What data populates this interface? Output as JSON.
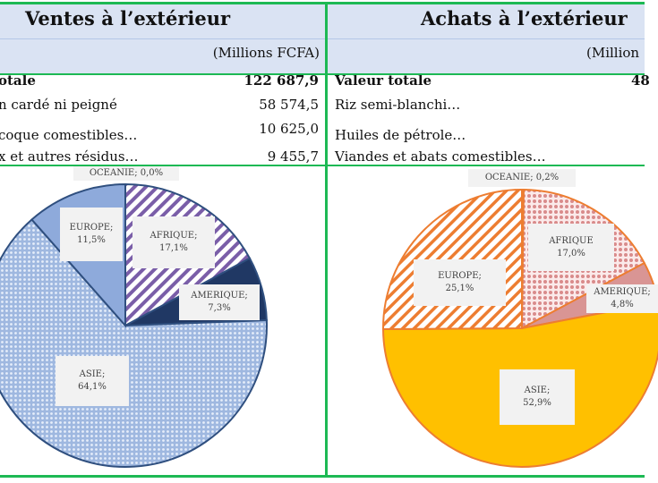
{
  "left": {
    "title": "Ventes à l’extérieur",
    "unit": "(Millions FCFA)",
    "rows": [
      {
        "label": "otale",
        "value": "122 687,9",
        "bold": true
      },
      {
        "label": "n cardé ni peigné",
        "value": "58 574,5"
      },
      {
        "label": "coque comestibles…",
        "value": "10 625,0"
      },
      {
        "label": "x et autres résidus…",
        "value": "9 455,7"
      }
    ]
  },
  "right": {
    "title": "Achats à l’extérieur",
    "unit": "(Million",
    "rows": [
      {
        "label": "Valeur totale",
        "value": "48",
        "bold": true
      },
      {
        "label": "Riz semi-blanchi…",
        "value": ""
      },
      {
        "label": "Huiles de pétrole…",
        "value": ""
      },
      {
        "label": "Viandes et abats comestibles…",
        "value": ""
      }
    ]
  },
  "chart_data": [
    {
      "type": "pie",
      "start": "12 o'clock, clockwise",
      "slices": [
        {
          "name": "OCEANIE",
          "value": 0.0,
          "label": "OCEANIE;  0,0%",
          "color": "#ffffff",
          "pattern": "none"
        },
        {
          "name": "AFRIQUE",
          "value": 17.1,
          "label": "AFRIQUE; 17,1%",
          "color": "#7a5ea8",
          "pattern": "diagonal-hatch"
        },
        {
          "name": "AMERIQUE",
          "value": 7.3,
          "label": "AMERIQUE; 7,3%",
          "color": "#203864",
          "pattern": "solid"
        },
        {
          "name": "ASIE",
          "value": 64.1,
          "label": "ASIE; 64,1%",
          "color": "#9fb8e0",
          "pattern": "dots"
        },
        {
          "name": "EUROPE",
          "value": 11.5,
          "label": "EUROPE; 11,5%",
          "color": "#8eaadb",
          "pattern": "solid"
        }
      ],
      "outline": "#2f4f7f"
    },
    {
      "type": "pie",
      "start": "12 o'clock, clockwise",
      "slices": [
        {
          "name": "OCEANIE",
          "value": 0.2,
          "label": "OCEANIE;  0,2%",
          "color": "#ed7d31",
          "pattern": "solid"
        },
        {
          "name": "AFRIQUE",
          "value": 17.0,
          "label": "AFRIQUE 17,0%",
          "color": "#e3a0a0",
          "pattern": "dots"
        },
        {
          "name": "AMERIQUE",
          "value": 4.8,
          "label": "AMERIQUE; 4,8%",
          "color": "#d99594",
          "pattern": "solid"
        },
        {
          "name": "ASIE",
          "value": 52.9,
          "label": "ASIE; 52,9%",
          "color": "#ffc000",
          "pattern": "solid"
        },
        {
          "name": "EUROPE",
          "value": 25.1,
          "label": "EUROPE; 25,1%",
          "color": "#ed7d31",
          "pattern": "diagonal-hatch"
        }
      ],
      "outline": "#ed7d31"
    }
  ]
}
